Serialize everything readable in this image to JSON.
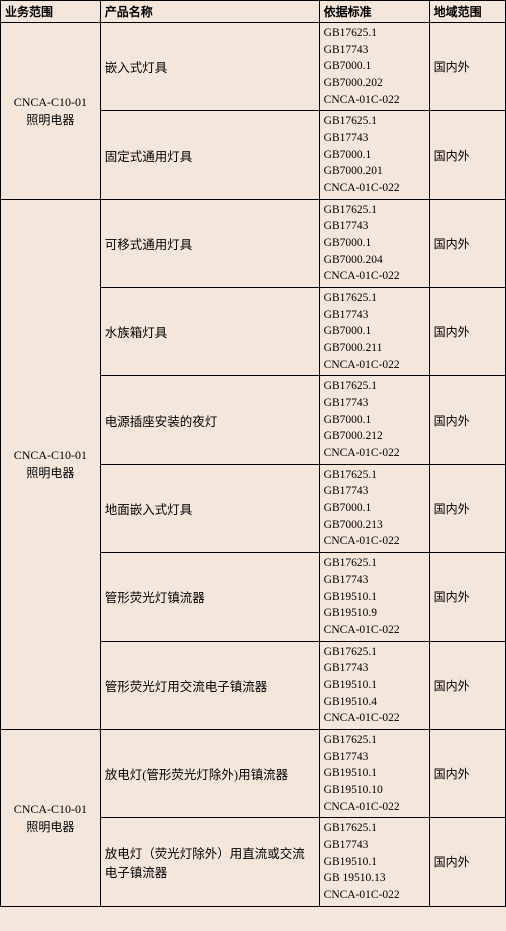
{
  "headers": {
    "scope": "业务范围",
    "product": "产品名称",
    "standard": "依据标准",
    "region": "地域范围"
  },
  "groups": [
    {
      "scope_line1": "CNCA-C10-01",
      "scope_line2": "照明电器",
      "rows": [
        {
          "product": "嵌入式灯具",
          "standards": [
            "GB17625.1",
            "GB17743",
            "GB7000.1",
            "GB7000.202",
            "CNCA-01C-022"
          ],
          "region": "国内外"
        },
        {
          "product": "固定式通用灯具",
          "standards": [
            "GB17625.1",
            "GB17743",
            "GB7000.1",
            "GB7000.201",
            "CNCA-01C-022"
          ],
          "region": "国内外"
        }
      ]
    },
    {
      "scope_line1": "CNCA-C10-01",
      "scope_line2": "照明电器",
      "rows": [
        {
          "product": "可移式通用灯具",
          "standards": [
            "GB17625.1",
            "GB17743",
            "GB7000.1",
            "GB7000.204",
            "CNCA-01C-022"
          ],
          "region": "国内外"
        },
        {
          "product": "水族箱灯具",
          "standards": [
            "GB17625.1",
            "GB17743",
            "GB7000.1",
            "GB7000.211",
            "CNCA-01C-022"
          ],
          "region": "国内外"
        },
        {
          "product": "电源插座安装的夜灯",
          "standards": [
            "GB17625.1",
            "GB17743",
            "GB7000.1",
            "GB7000.212",
            "CNCA-01C-022"
          ],
          "region": "国内外"
        },
        {
          "product": "地面嵌入式灯具",
          "standards": [
            "GB17625.1",
            "GB17743",
            "GB7000.1",
            "GB7000.213",
            "CNCA-01C-022"
          ],
          "region": "国内外"
        },
        {
          "product": "管形荧光灯镇流器",
          "standards": [
            "GB17625.1",
            "GB17743",
            "GB19510.1",
            "GB19510.9",
            "CNCA-01C-022"
          ],
          "region": "国内外"
        },
        {
          "product": "管形荧光灯用交流电子镇流器",
          "standards": [
            "GB17625.1",
            "GB17743",
            "GB19510.1",
            "GB19510.4",
            "CNCA-01C-022"
          ],
          "region": "国内外"
        }
      ]
    },
    {
      "scope_line1": "CNCA-C10-01",
      "scope_line2": "照明电器",
      "rows": [
        {
          "product": "放电灯(管形荧光灯除外)用镇流器",
          "standards": [
            "GB17625.1",
            "GB17743",
            "GB19510.1",
            "GB19510.10",
            "CNCA-01C-022"
          ],
          "region": "国内外"
        },
        {
          "product": "放电灯（荧光灯除外）用直流或交流电子镇流器",
          "standards": [
            "GB17625.1",
            "GB17743",
            "GB19510.1",
            "GB 19510.13",
            "CNCA-01C-022"
          ],
          "region": "国内外"
        }
      ]
    }
  ]
}
